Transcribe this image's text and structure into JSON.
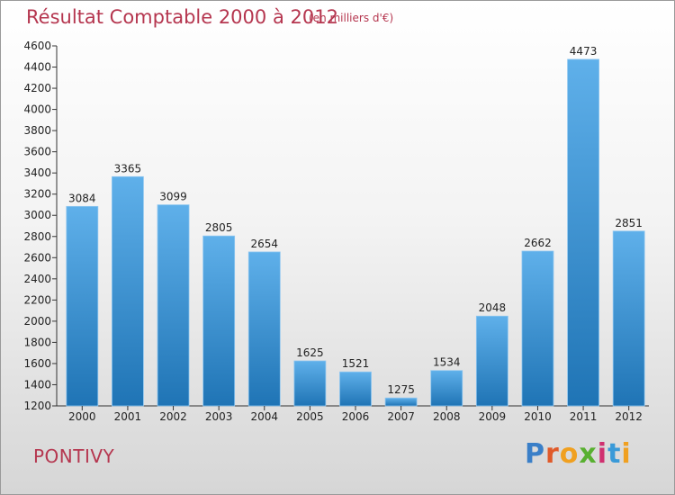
{
  "header": {
    "title": "Résultat Comptable 2000 à 2012",
    "subtitle": "(en milliers d'€)"
  },
  "footer": {
    "town": "PONTIVY",
    "logo": "Proxiti"
  },
  "colors": {
    "title": "#b5364f",
    "bar_top": "#5fb0ea",
    "bar_bottom": "#1f74b5",
    "logo_letters": [
      "#3a7fc8",
      "#e05a2a",
      "#f0a020",
      "#58b030",
      "#d03070",
      "#3a9ad8",
      "#f0a020"
    ]
  },
  "chart_data": {
    "type": "bar",
    "title": "Résultat Comptable 2000 à 2012",
    "subtitle": "(en milliers d'€)",
    "categories": [
      "2000",
      "2001",
      "2002",
      "2003",
      "2004",
      "2005",
      "2006",
      "2007",
      "2008",
      "2009",
      "2010",
      "2011",
      "2012"
    ],
    "values": [
      3084,
      3365,
      3099,
      2805,
      2654,
      1625,
      1521,
      1275,
      1534,
      2048,
      2662,
      4473,
      2851
    ],
    "ylim": [
      1200,
      4600
    ],
    "yticks": [
      1200,
      1400,
      1600,
      1800,
      2000,
      2200,
      2400,
      2600,
      2800,
      3000,
      3200,
      3400,
      3600,
      3800,
      4000,
      4200,
      4400,
      4600
    ],
    "grid": false,
    "xlabel": "",
    "ylabel": ""
  }
}
